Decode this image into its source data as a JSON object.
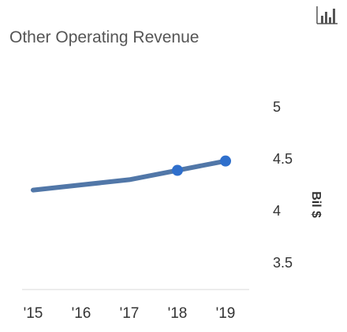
{
  "title": "Other Operating Revenue",
  "icon": "bar-chart-icon",
  "chart_data": {
    "type": "line",
    "title": "Other Operating Revenue",
    "x": [
      "'15",
      "'16",
      "'17",
      "'18",
      "'19"
    ],
    "series": [
      {
        "color": "#5177a8",
        "values": [
          4.2,
          4.25,
          4.3,
          4.39,
          4.48
        ],
        "markers": [
          false,
          false,
          false,
          true,
          true
        ],
        "marker_color": "#2f6fcc"
      }
    ],
    "y_ticks": [
      "5",
      "4.5",
      "4",
      "3.5"
    ],
    "y_tick_values": [
      5,
      4.5,
      4,
      3.5
    ],
    "ylim": [
      3.5,
      5
    ],
    "ylabel": "Bil $",
    "y_axis_side": "right",
    "grid": false
  }
}
